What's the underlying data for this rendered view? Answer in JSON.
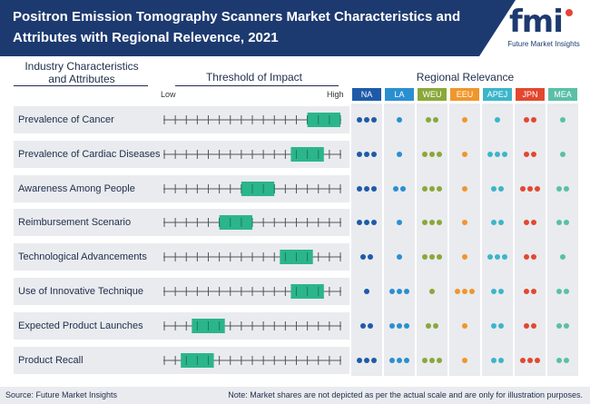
{
  "header": {
    "title": "Positron Emission Tomography Scanners Market Characteristics and Attributes with Regional Relevence, 2021"
  },
  "logo": {
    "mark": "fmi",
    "text": "Future Market Insights"
  },
  "columns": {
    "characteristics": "Industry Characteristics\nand Attributes",
    "threshold": "Threshold of Impact",
    "regional": "Regional Relevance",
    "low": "Low",
    "high": "High"
  },
  "chart_data": {
    "type": "table",
    "title": "Positron Emission Tomography Scanners Market Characteristics and Attributes with Regional Relevence, 2021",
    "impact_scale": {
      "min": 0,
      "max": 16,
      "low_label": "Low",
      "high_label": "High"
    },
    "regions": [
      {
        "code": "NA",
        "color": "#1f5aa8"
      },
      {
        "code": "LA",
        "color": "#2a8fd1"
      },
      {
        "code": "WEU",
        "color": "#8aa83a"
      },
      {
        "code": "EEU",
        "color": "#f0962b"
      },
      {
        "code": "APEJ",
        "color": "#3cb5c9"
      },
      {
        "code": "JPN",
        "color": "#e2482f"
      },
      {
        "code": "MEA",
        "color": "#5bbfa8"
      }
    ],
    "rows": [
      {
        "label": "Prevalence of Cancer",
        "impact": [
          13,
          16
        ],
        "relevance": [
          3,
          1,
          2,
          1,
          1,
          2,
          1
        ]
      },
      {
        "label": "Prevalence of Cardiac Diseases",
        "impact": [
          11.5,
          14.5
        ],
        "relevance": [
          3,
          1,
          3,
          1,
          3,
          2,
          1
        ]
      },
      {
        "label": "Awareness Among People",
        "impact": [
          7,
          10
        ],
        "relevance": [
          3,
          2,
          3,
          1,
          2,
          3,
          2
        ]
      },
      {
        "label": "Reimbursement Scenario",
        "impact": [
          5,
          8
        ],
        "relevance": [
          3,
          1,
          3,
          1,
          2,
          2,
          2
        ]
      },
      {
        "label": "Technological Advancements",
        "impact": [
          10.5,
          13.5
        ],
        "relevance": [
          2,
          1,
          3,
          1,
          3,
          2,
          1
        ]
      },
      {
        "label": "Use of Innovative Technique",
        "impact": [
          11.5,
          14.5
        ],
        "relevance": [
          1,
          3,
          1,
          3,
          2,
          2,
          2
        ]
      },
      {
        "label": "Expected Product Launches",
        "impact": [
          2.5,
          5.5
        ],
        "relevance": [
          2,
          3,
          2,
          1,
          2,
          2,
          2
        ]
      },
      {
        "label": "Product Recall",
        "impact": [
          1.5,
          4.5
        ],
        "relevance": [
          3,
          3,
          3,
          1,
          2,
          3,
          2
        ]
      }
    ]
  },
  "footer": {
    "source": "Source: Future Market Insights",
    "note": "Note: Market shares are not depicted as per the actual scale and are only for illustration purposes."
  }
}
